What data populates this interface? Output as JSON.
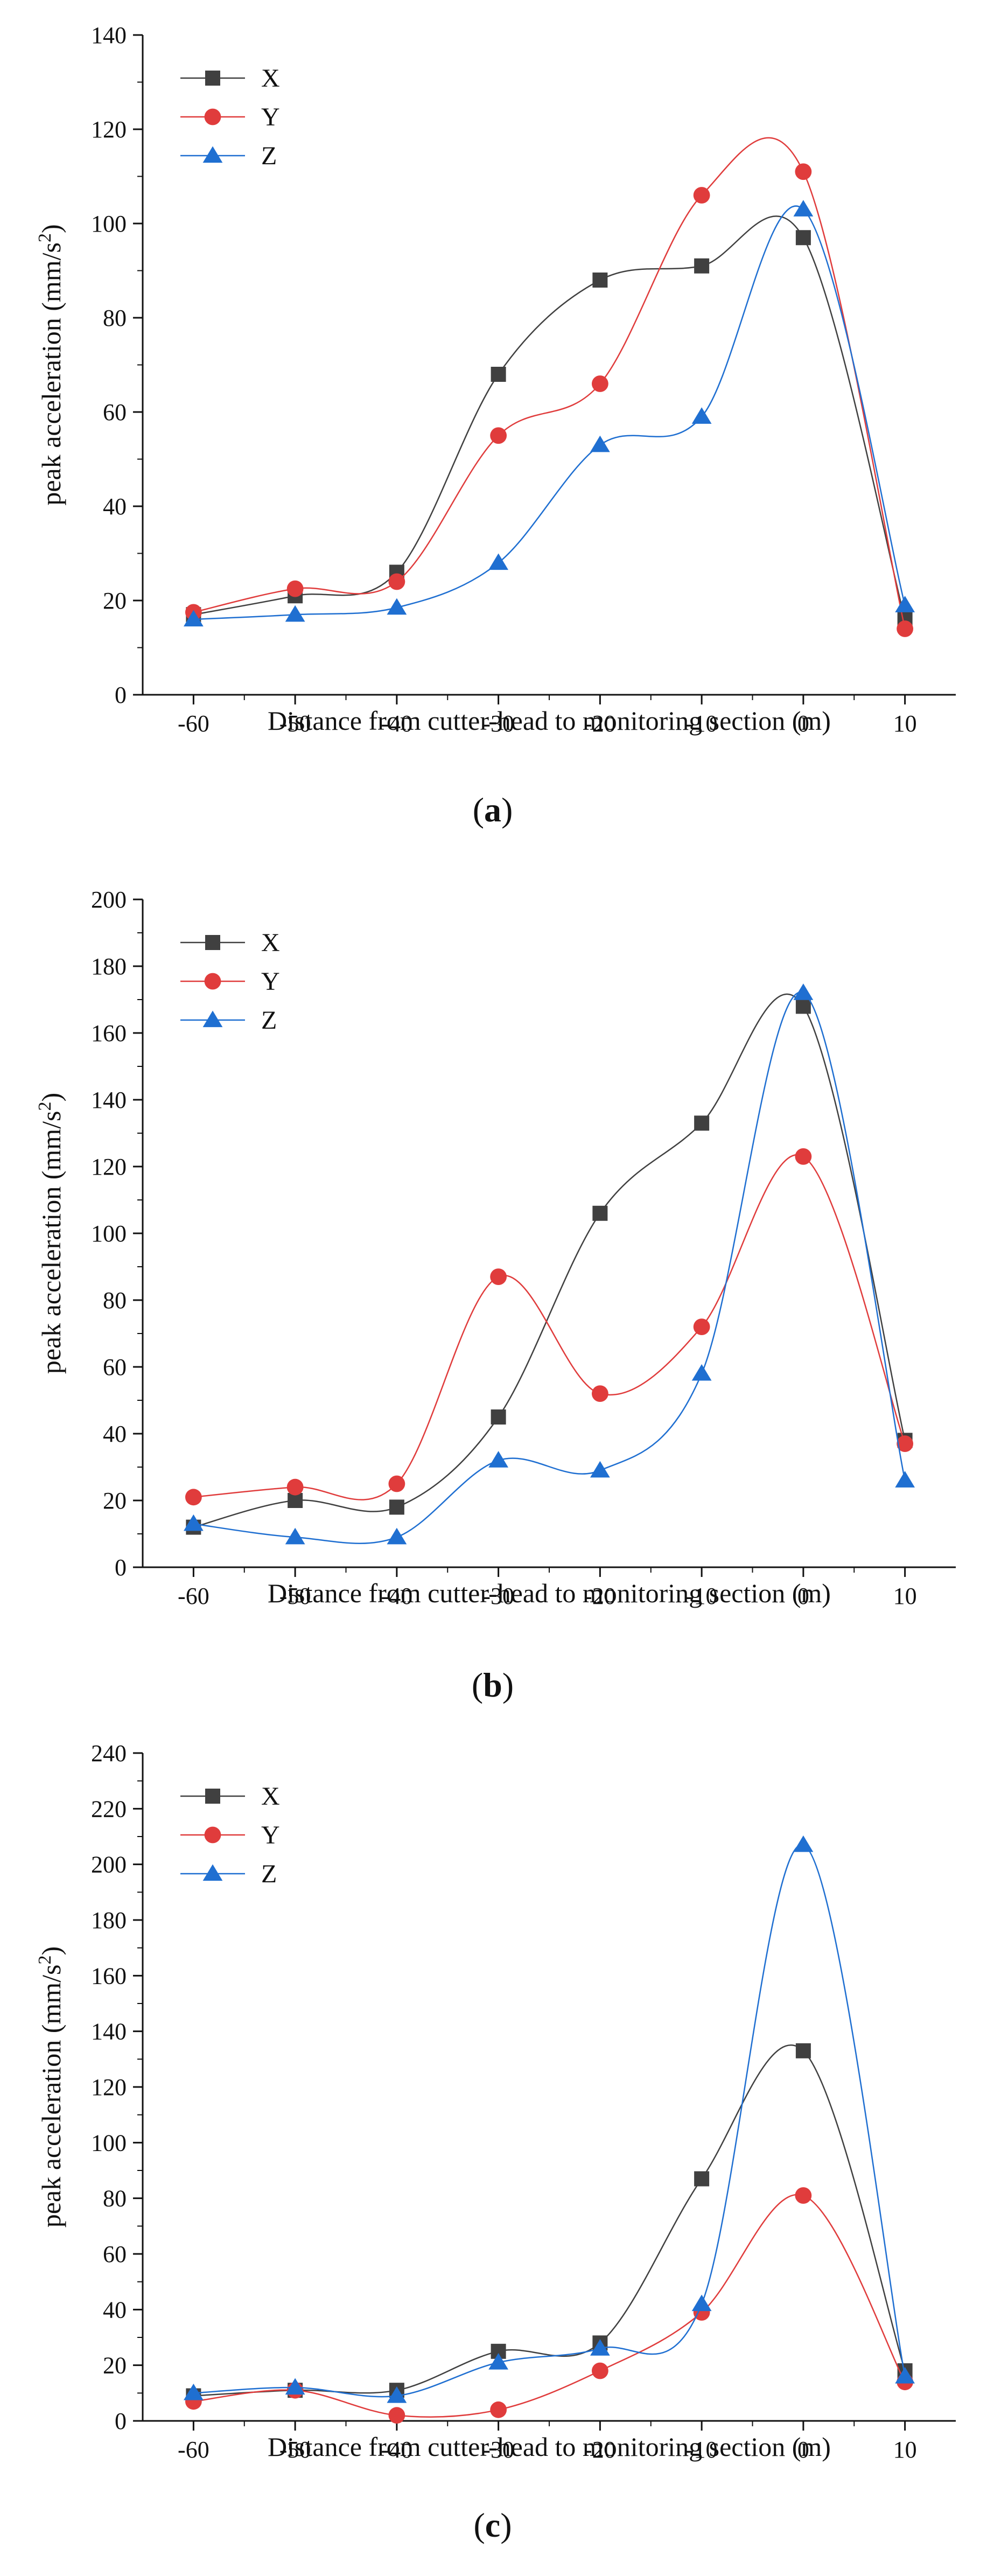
{
  "colors": {
    "X": "#404040",
    "Y": "#e03c3c",
    "Z": "#1f6fd1",
    "axis": "#111111"
  },
  "chart_data": [
    {
      "panel": "a",
      "type": "line",
      "xlabel": "Distance from cutter-head to monitoring section (m)",
      "ylabel": "peak acceleration (mm/s",
      "ylabel_sup": "2",
      "ylabel_end": ")",
      "xlim": [
        -65,
        15
      ],
      "ylim": [
        0,
        140
      ],
      "xticks": [
        -60,
        -50,
        -40,
        -30,
        -20,
        -10,
        0,
        10
      ],
      "yticks": [
        0,
        20,
        40,
        60,
        80,
        100,
        120,
        140
      ],
      "x": [
        -60,
        -50,
        -40,
        -30,
        -20,
        -10,
        0,
        10
      ],
      "series": [
        {
          "name": "X",
          "marker": "square",
          "values": [
            17,
            21,
            26,
            68,
            88,
            91,
            97,
            16
          ]
        },
        {
          "name": "Y",
          "marker": "circle",
          "values": [
            17.5,
            22.5,
            24,
            55,
            66,
            106,
            111,
            14
          ]
        },
        {
          "name": "Z",
          "marker": "triangle",
          "values": [
            16,
            17,
            18.5,
            28,
            53,
            59,
            103,
            19
          ]
        }
      ],
      "label_prefix": "(",
      "label_letter": "a",
      "label_suffix": ")"
    },
    {
      "panel": "b",
      "type": "line",
      "xlabel": "Distance from cutter-head to monitoring section (m)",
      "ylabel": "peak acceleration (mm/s",
      "ylabel_sup": "2",
      "ylabel_end": ")",
      "xlim": [
        -65,
        15
      ],
      "ylim": [
        0,
        200
      ],
      "xticks": [
        -60,
        -50,
        -40,
        -30,
        -20,
        -10,
        0,
        10
      ],
      "yticks": [
        0,
        20,
        40,
        60,
        80,
        100,
        120,
        140,
        160,
        180,
        200
      ],
      "x": [
        -60,
        -50,
        -40,
        -30,
        -20,
        -10,
        0,
        10
      ],
      "series": [
        {
          "name": "X",
          "marker": "square",
          "values": [
            12,
            20,
            18,
            45,
            106,
            133,
            168,
            38
          ]
        },
        {
          "name": "Y",
          "marker": "circle",
          "values": [
            21,
            24,
            25,
            87,
            52,
            72,
            123,
            37
          ]
        },
        {
          "name": "Z",
          "marker": "triangle",
          "values": [
            13,
            9,
            9,
            32,
            29,
            58,
            172,
            26
          ]
        }
      ],
      "label_prefix": "(",
      "label_letter": "b",
      "label_suffix": ")"
    },
    {
      "panel": "c",
      "type": "line",
      "xlabel": "Distance from cutter-head to monitoring section (m)",
      "ylabel": "peak acceleration (mm/s",
      "ylabel_sup": "2",
      "ylabel_end": ")",
      "xlim": [
        -65,
        15
      ],
      "ylim": [
        0,
        240
      ],
      "xticks": [
        -60,
        -50,
        -40,
        -30,
        -20,
        -10,
        0,
        10
      ],
      "yticks": [
        0,
        20,
        40,
        60,
        80,
        100,
        120,
        140,
        160,
        180,
        200,
        220,
        240
      ],
      "x": [
        -60,
        -50,
        -40,
        -30,
        -20,
        -10,
        0,
        10
      ],
      "series": [
        {
          "name": "X",
          "marker": "square",
          "values": [
            9,
            11,
            11,
            25,
            28,
            87,
            133,
            18
          ]
        },
        {
          "name": "Y",
          "marker": "circle",
          "values": [
            7,
            11,
            2,
            4,
            18,
            39,
            81,
            14
          ]
        },
        {
          "name": "Z",
          "marker": "triangle",
          "values": [
            10,
            12,
            9,
            21,
            26,
            42,
            207,
            16
          ]
        }
      ],
      "label_prefix": "(",
      "label_letter": "c",
      "label_suffix": ")"
    }
  ]
}
